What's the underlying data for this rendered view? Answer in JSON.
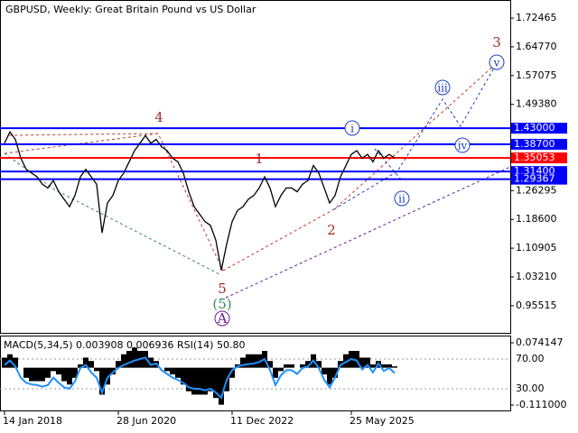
{
  "chart_data": [
    {
      "type": "line",
      "title": "GBPUSD, Weekly:  Great Britain Pound vs US Dollar",
      "color": "#000000",
      "categories": [
        "14 Jan 2018",
        null,
        null,
        null,
        null,
        null,
        null,
        null,
        null,
        null,
        null,
        null,
        null,
        null,
        null,
        null,
        null,
        null,
        null,
        null,
        null,
        "28 Jun 2020",
        null,
        null,
        null,
        null,
        null,
        null,
        null,
        null,
        null,
        null,
        null,
        null,
        null,
        null,
        null,
        null,
        null,
        null,
        null,
        null,
        "11 Dec 2022",
        null,
        null,
        null,
        null,
        null,
        null,
        null,
        null,
        null,
        null,
        null,
        null,
        null,
        null,
        null,
        null,
        null,
        null,
        null,
        null,
        null,
        "25 May 2025",
        null,
        null,
        null,
        null,
        null,
        null,
        null,
        null
      ],
      "values": [
        1.39,
        1.42,
        1.4,
        1.35,
        1.32,
        1.31,
        1.3,
        1.28,
        1.27,
        1.29,
        1.26,
        1.24,
        1.22,
        1.25,
        1.3,
        1.32,
        1.3,
        1.28,
        1.15,
        1.23,
        1.25,
        1.29,
        1.31,
        1.34,
        1.37,
        1.39,
        1.41,
        1.39,
        1.4,
        1.38,
        1.37,
        1.35,
        1.34,
        1.31,
        1.26,
        1.22,
        1.2,
        1.18,
        1.17,
        1.13,
        1.05,
        1.12,
        1.18,
        1.21,
        1.22,
        1.24,
        1.25,
        1.27,
        1.3,
        1.27,
        1.22,
        1.25,
        1.27,
        1.27,
        1.26,
        1.28,
        1.29,
        1.33,
        1.31,
        1.27,
        1.23,
        1.25,
        1.3,
        1.33,
        1.36,
        1.37,
        1.35,
        1.36,
        1.34,
        1.37,
        1.35,
        1.36,
        1.35
      ],
      "ylim": [
        0.88,
        1.773
      ],
      "yticks": [
        1.72465,
        {
          "value": 1.6477,
          "label": "1.64770"
        },
        1.57075,
        {
          "value": 1.4938,
          "label": "1.49380"
        },
        1.26295,
        {
          "value": 1.186,
          "label": "1.18600"
        },
        1.10905,
        {
          "value": 1.0321,
          "label": "1.03210"
        },
        0.95515
      ],
      "levels": [
        {
          "value": 1.43,
          "label": "1.43000",
          "color": "#0000ff"
        },
        {
          "value": 1.387,
          "label": "1.38700",
          "color": "#0000ff"
        },
        {
          "value": 1.35053,
          "label": "1.35053",
          "color": "#ff0000"
        },
        {
          "value": 1.314,
          "label": "1.31400",
          "color": "#0000ff"
        },
        {
          "value": 1.29367,
          "label": "1.29367",
          "color": "#0000ff"
        }
      ],
      "annotations": [
        {
          "text": "4",
          "color": "#a52a2a"
        },
        {
          "text": "5",
          "color": "#a52a2a"
        },
        {
          "text": "(5)",
          "color": "#2e8b57"
        },
        {
          "text": "A",
          "color": "#6a1b9a"
        },
        {
          "text": "1",
          "color": "#a52a2a"
        },
        {
          "text": "2",
          "color": "#a52a2a"
        },
        {
          "text": "3",
          "color": "#a52a2a"
        },
        {
          "text": "i",
          "color": "#1f3fbf"
        },
        {
          "text": "ii",
          "color": "#1f3fbf"
        },
        {
          "text": "iii",
          "color": "#1f3fbf"
        },
        {
          "text": "iv",
          "color": "#1f3fbf"
        },
        {
          "text": "v",
          "color": "#1f3fbf"
        }
      ]
    },
    {
      "type": "oscillator",
      "title": "MACD(5,34,5) 0.003908 0.006936 RSI(14) 50.80",
      "macd": {
        "color": "#000000",
        "values": [
          0.03,
          0.04,
          0.03,
          0.0,
          -0.03,
          -0.04,
          -0.04,
          -0.04,
          -0.03,
          -0.01,
          -0.02,
          -0.04,
          -0.05,
          -0.03,
          0.01,
          0.03,
          0.02,
          -0.01,
          -0.08,
          -0.05,
          -0.02,
          0.02,
          0.04,
          0.05,
          0.06,
          0.05,
          0.05,
          0.03,
          0.02,
          0.0,
          -0.01,
          -0.02,
          -0.03,
          -0.05,
          -0.07,
          -0.08,
          -0.08,
          -0.08,
          -0.07,
          -0.09,
          -0.11,
          -0.07,
          -0.03,
          0.01,
          0.03,
          0.04,
          0.04,
          0.04,
          0.05,
          0.02,
          -0.03,
          -0.01,
          0.01,
          0.01,
          0.0,
          0.01,
          0.02,
          0.04,
          0.02,
          -0.02,
          -0.05,
          -0.03,
          0.02,
          0.04,
          0.05,
          0.05,
          0.03,
          0.03,
          0.01,
          0.02,
          0.01,
          0.01,
          0.004
        ]
      },
      "rsi": {
        "color": "#1e90ff",
        "axis": "y2",
        "values": [
          62,
          68,
          60,
          45,
          38,
          36,
          35,
          33,
          35,
          45,
          38,
          32,
          30,
          40,
          58,
          62,
          52,
          45,
          25,
          45,
          52,
          58,
          62,
          65,
          68,
          70,
          72,
          62,
          64,
          55,
          50,
          45,
          42,
          38,
          32,
          30,
          30,
          28,
          30,
          25,
          18,
          42,
          55,
          60,
          62,
          63,
          64,
          66,
          70,
          55,
          35,
          48,
          55,
          55,
          50,
          58,
          60,
          68,
          58,
          42,
          32,
          45,
          62,
          66,
          70,
          68,
          56,
          62,
          52,
          64,
          54,
          58,
          51
        ]
      },
      "ylim": [
        -0.111,
        0.074147
      ],
      "yticks": [
        0.074147,
        {
          "value": -0.111,
          "label": "-0.111000"
        }
      ],
      "y2lim": [
        8.2,
        91.8
      ],
      "y2ticks": [
        {
          "value": 70,
          "label": "70.00"
        },
        {
          "value": 30,
          "label": "30.00"
        }
      ]
    }
  ]
}
